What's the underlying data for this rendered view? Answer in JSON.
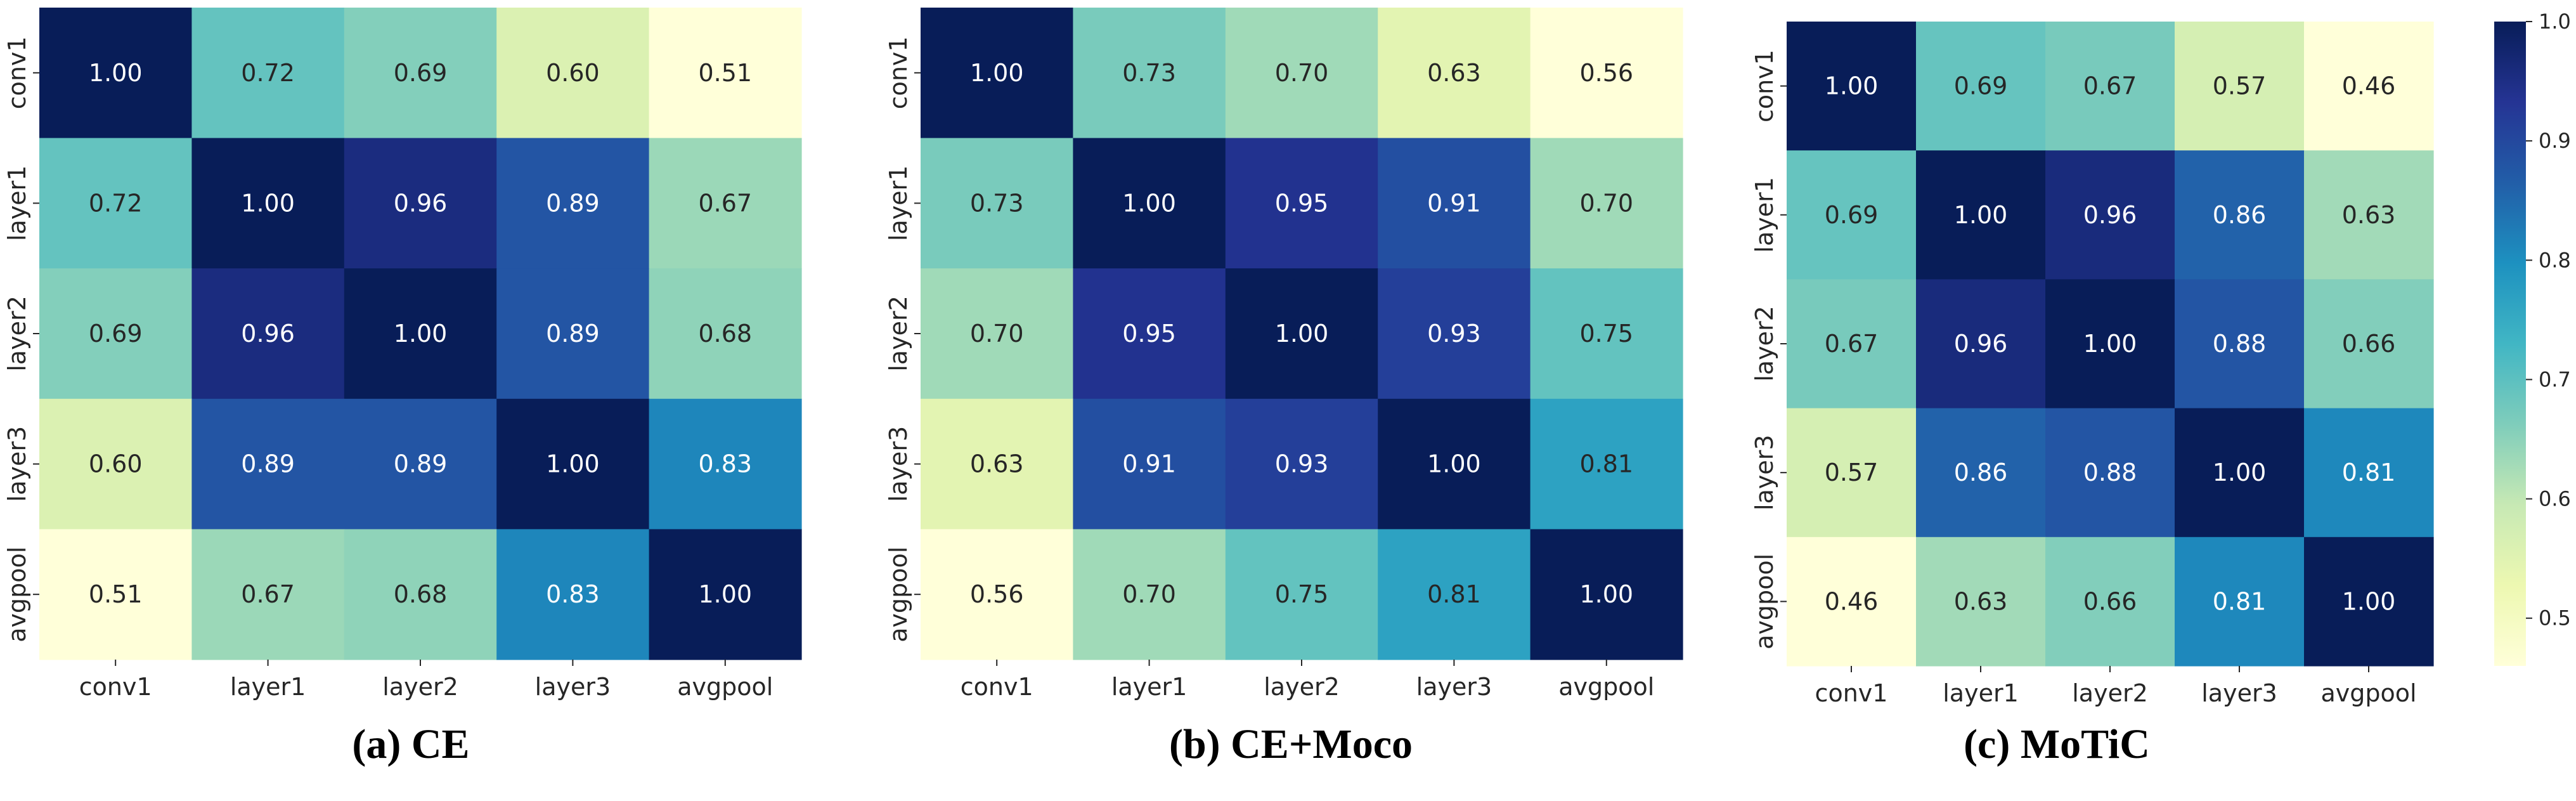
{
  "chart_data": [
    {
      "type": "heatmap",
      "title": "(a) CE",
      "xlabels": [
        "conv1",
        "layer1",
        "layer2",
        "layer3",
        "avgpool"
      ],
      "ylabels": [
        "conv1",
        "layer1",
        "layer2",
        "layer3",
        "avgpool"
      ],
      "values": [
        [
          1.0,
          0.72,
          0.69,
          0.6,
          0.51
        ],
        [
          0.72,
          1.0,
          0.96,
          0.89,
          0.67
        ],
        [
          0.69,
          0.96,
          1.0,
          0.89,
          0.68
        ],
        [
          0.6,
          0.89,
          0.89,
          1.0,
          0.83
        ],
        [
          0.51,
          0.67,
          0.68,
          0.83,
          1.0
        ]
      ],
      "colormap": "YlGnBu",
      "vmin": 0.51,
      "vmax": 1.0,
      "colorbar": false
    },
    {
      "type": "heatmap",
      "title": "(b) CE+Moco",
      "xlabels": [
        "conv1",
        "layer1",
        "layer2",
        "layer3",
        "avgpool"
      ],
      "ylabels": [
        "conv1",
        "layer1",
        "layer2",
        "layer3",
        "avgpool"
      ],
      "values": [
        [
          1.0,
          0.73,
          0.7,
          0.63,
          0.56
        ],
        [
          0.73,
          1.0,
          0.95,
          0.91,
          0.7
        ],
        [
          0.7,
          0.95,
          1.0,
          0.93,
          0.75
        ],
        [
          0.63,
          0.91,
          0.93,
          1.0,
          0.81
        ],
        [
          0.56,
          0.7,
          0.75,
          0.81,
          1.0
        ]
      ],
      "colormap": "YlGnBu",
      "vmin": 0.56,
      "vmax": 1.0,
      "colorbar": false
    },
    {
      "type": "heatmap",
      "title": "(c) MoTiC",
      "xlabels": [
        "conv1",
        "layer1",
        "layer2",
        "layer3",
        "avgpool"
      ],
      "ylabels": [
        "conv1",
        "layer1",
        "layer2",
        "layer3",
        "avgpool"
      ],
      "values": [
        [
          1.0,
          0.69,
          0.67,
          0.57,
          0.46
        ],
        [
          0.69,
          1.0,
          0.96,
          0.86,
          0.63
        ],
        [
          0.67,
          0.96,
          1.0,
          0.88,
          0.66
        ],
        [
          0.57,
          0.86,
          0.88,
          1.0,
          0.81
        ],
        [
          0.46,
          0.63,
          0.66,
          0.81,
          1.0
        ]
      ],
      "colormap": "YlGnBu",
      "vmin": 0.46,
      "vmax": 1.0,
      "colorbar": true,
      "colorbar_ticks": [
        0.5,
        0.6,
        0.7,
        0.8,
        0.9,
        1.0
      ],
      "colorbar_tick_labels": [
        "0.5",
        "0.6",
        "0.7",
        "0.8",
        "0.9",
        "1.0"
      ]
    }
  ]
}
